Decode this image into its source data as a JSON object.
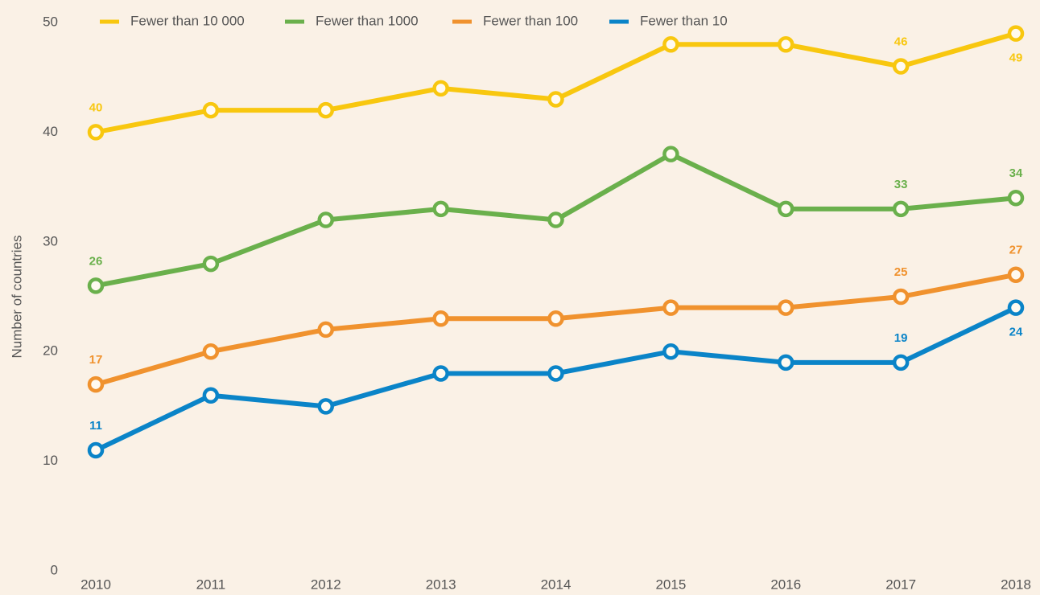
{
  "chart_data": {
    "type": "line",
    "y_label": "Number of countries",
    "categories": [
      "2010",
      "2011",
      "2012",
      "2013",
      "2014",
      "2015",
      "2016",
      "2017",
      "2018"
    ],
    "series": [
      {
        "name": "Fewer than 10 000",
        "color": "#f8c70f",
        "values": [
          40,
          42,
          42,
          44,
          43,
          48,
          48,
          46,
          49
        ],
        "value_labels": [
          "40",
          null,
          null,
          null,
          null,
          null,
          null,
          "46",
          "49"
        ]
      },
      {
        "name": "Fewer than 1000",
        "color": "#6ab04c",
        "values": [
          26,
          28,
          32,
          33,
          32,
          38,
          33,
          33,
          34
        ],
        "value_labels": [
          "26",
          null,
          null,
          null,
          null,
          null,
          null,
          "33",
          "34"
        ]
      },
      {
        "name": "Fewer than 100",
        "color": "#f0922e",
        "values": [
          17,
          20,
          22,
          23,
          23,
          24,
          24,
          25,
          27
        ],
        "value_labels": [
          "17",
          null,
          null,
          null,
          null,
          null,
          null,
          "25",
          "27"
        ]
      },
      {
        "name": "Fewer than 10",
        "color": "#0a84c8",
        "values": [
          11,
          16,
          15,
          18,
          18,
          20,
          19,
          19,
          24
        ],
        "value_labels": [
          "11",
          null,
          null,
          null,
          null,
          null,
          null,
          "19",
          "24"
        ]
      }
    ],
    "ylim": [
      0,
      50
    ],
    "yticks": [
      0,
      10,
      20,
      30,
      40,
      50
    ],
    "grid": false,
    "legend": "top"
  }
}
